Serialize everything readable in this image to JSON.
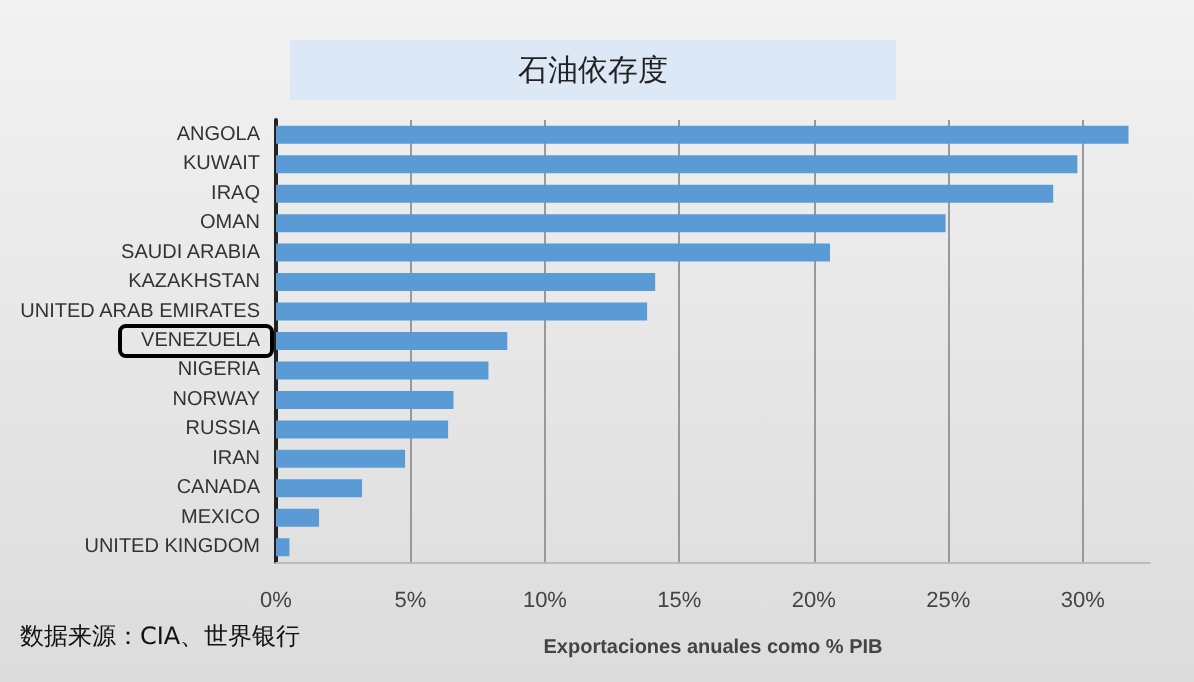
{
  "chart_data": {
    "type": "bar",
    "orientation": "horizontal",
    "title": "石油依存度",
    "xlabel": "Exportaciones anuales como % PIB",
    "categories": [
      "ANGOLA",
      "KUWAIT",
      "IRAQ",
      "OMAN",
      "SAUDI ARABIA",
      "KAZAKHSTAN",
      "UNITED ARAB EMIRATES",
      "VENEZUELA",
      "NIGERIA",
      "NORWAY",
      "RUSSIA",
      "IRAN",
      "CANADA",
      "MEXICO",
      "UNITED KINGDOM"
    ],
    "values": [
      31.7,
      29.8,
      28.9,
      24.9,
      20.6,
      14.1,
      13.8,
      8.6,
      7.9,
      6.6,
      6.4,
      4.8,
      3.2,
      1.6,
      0.5
    ],
    "color": "#5b9bd5",
    "xlim": [
      0,
      32.5
    ],
    "xticks": [
      {
        "value": 0,
        "label": "0%"
      },
      {
        "value": 5,
        "label": "5%"
      },
      {
        "value": 10,
        "label": "10%"
      },
      {
        "value": 15,
        "label": "15%"
      },
      {
        "value": 20,
        "label": "20%"
      },
      {
        "value": 25,
        "label": "25%"
      },
      {
        "value": 30,
        "label": "30%"
      }
    ],
    "grid": "x",
    "annotations": [
      "数据来源：CIA、世界银行"
    ]
  }
}
